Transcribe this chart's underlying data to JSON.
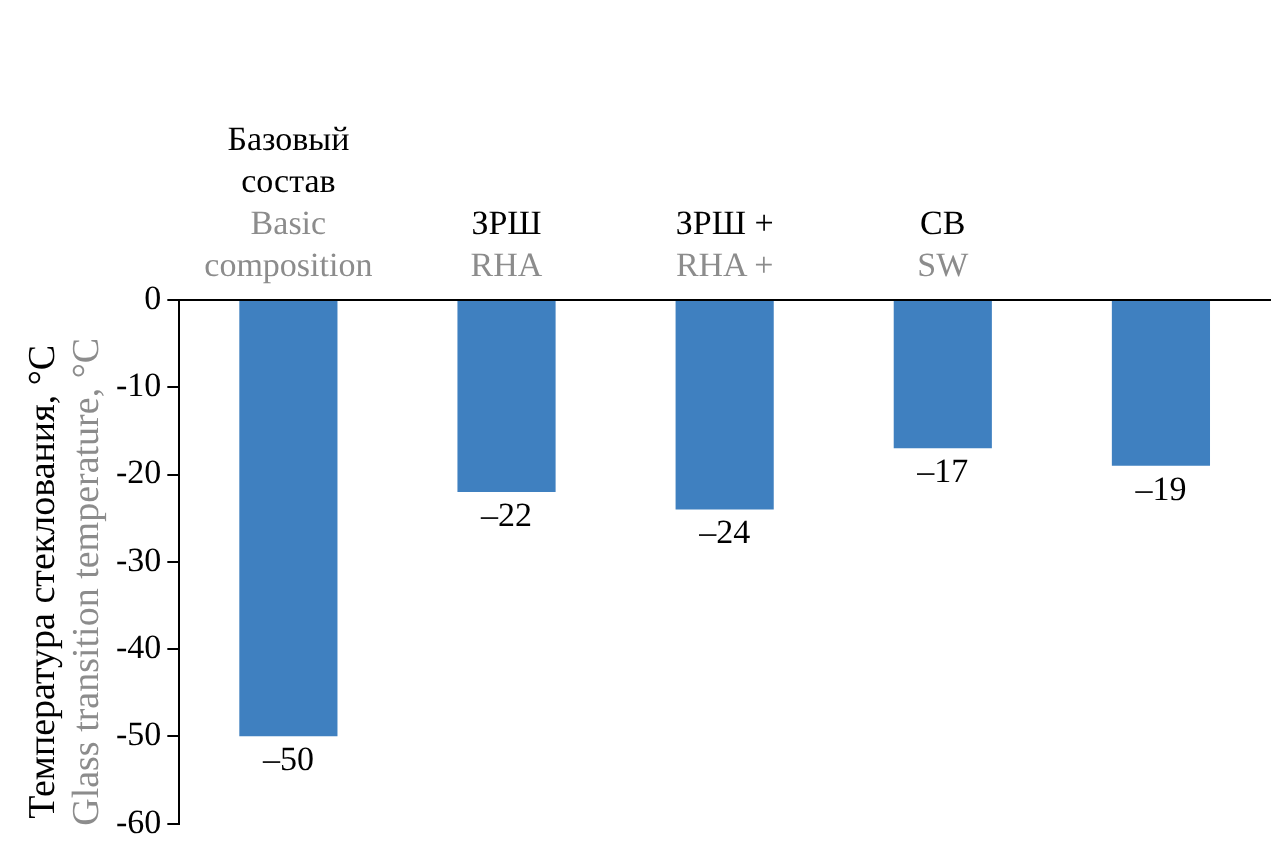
{
  "chart_data": {
    "type": "bar",
    "ylabel": "Температура стеклования, °C\nGlass transition temperature, °C",
    "categories": [
      "Базовый состав\nBasic composition",
      "ЗРШ\nRHA",
      "ЗРШ +\nRHA +",
      "СВ\nSW",
      null
    ],
    "values": [
      -50,
      -22,
      -24,
      -17,
      -19
    ],
    "color": "#3f80c0",
    "value_labels": [
      "–50",
      "–22",
      "–24",
      "–17",
      "–19"
    ],
    "ylim": [
      -60,
      0
    ],
    "yticks": [
      -60,
      -50,
      -40,
      -30,
      -20,
      -10,
      0
    ],
    "grid": false,
    "legend": false
  }
}
